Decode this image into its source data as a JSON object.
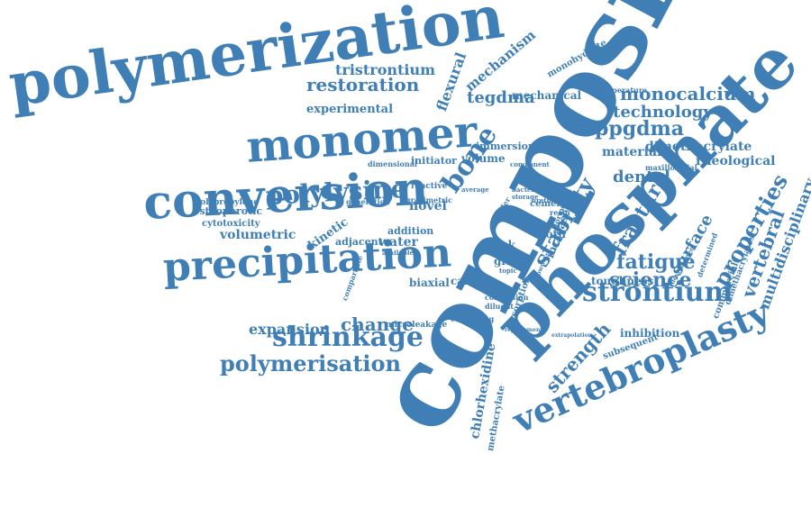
{
  "colors": {
    "word": "#3f7fb5",
    "background": "#ffffff"
  },
  "words": {
    "composite": "composite",
    "polymerization": "polymerization",
    "phosphate": "phosphate",
    "conversion": "conversion",
    "monomer": "monomer",
    "precipitation": "precipitation",
    "vertebroplasty": "vertebroplasty",
    "polylysine": "polylysine",
    "shrinkage": "shrinkage",
    "polymerisation": "polymerisation",
    "restoration": "restoration",
    "tristrontium": "tristrontium",
    "bone": "bone",
    "strontium": "strontium",
    "stability": "stability",
    "strength": "strength",
    "properties": "properties",
    "fracture": "fracture",
    "fatigue": "fatigue",
    "science": "science",
    "surface": "surface",
    "vertebral": "vertebral",
    "monocalcium": "monocalcium",
    "technology": "technology",
    "ppgdma": "ppgdma",
    "dental": "dental",
    "material": "material",
    "dimethacrylate": "dimethacrylate",
    "rheological": "rheological",
    "multidisciplinary": "multidisciplinary",
    "expansion": "expansion",
    "change": "change",
    "experimental": "experimental",
    "mechanism": "mechanism",
    "flexural": "flexural",
    "tegdma": "tegdma",
    "mechanical": "mechanical",
    "monohydrate": "monohydrate",
    "temperature": "temperature",
    "immersion": "immersion",
    "volume": "volume",
    "initiator": "initiator",
    "dimensional": "dimensional",
    "polypropylene": "polypropylene",
    "osteoporotic": "osteoporotic",
    "cytotoxicity": "cytotoxicity",
    "volumetric": "volumetric",
    "kinetic": "kinetic",
    "adjacent": "adjacent",
    "addition": "addition",
    "water": "water",
    "novel": "novel",
    "generation": "generation",
    "gravimetric": "gravimetric",
    "biaxial": "biaxial",
    "calcium": "calcium",
    "glass": "glass",
    "week": "week",
    "tooth": "tooth",
    "increase": "increase",
    "cement": "cement",
    "toughness": "toughness",
    "inhibition": "inhibition",
    "subsequent": "subsequent",
    "chlorhexidine": "chlorhexidine",
    "methacrylate": "methacrylate",
    "diluent": "diluent",
    "sorption": "sorption",
    "microleakage": "microleakage",
    "conclusion": "conclusion",
    "containing": "containing",
    "commercial": "commercial",
    "dimethacrylates": "dimethacrylates",
    "determined": "determined",
    "maxillofacial": "maxillofacial",
    "component": "component",
    "extrapolation": "extrapolation",
    "replacement": "replacement",
    "development": "development",
    "reactive": "reactive",
    "bacterial": "bacterial",
    "storage": "storage",
    "urethane": "urethane",
    "resin": "resin",
    "filler": "filler",
    "average": "average",
    "formation": "formation",
    "topic": "topic",
    "powder": "powder",
    "comparable": "comparable",
    "available": "available"
  }
}
